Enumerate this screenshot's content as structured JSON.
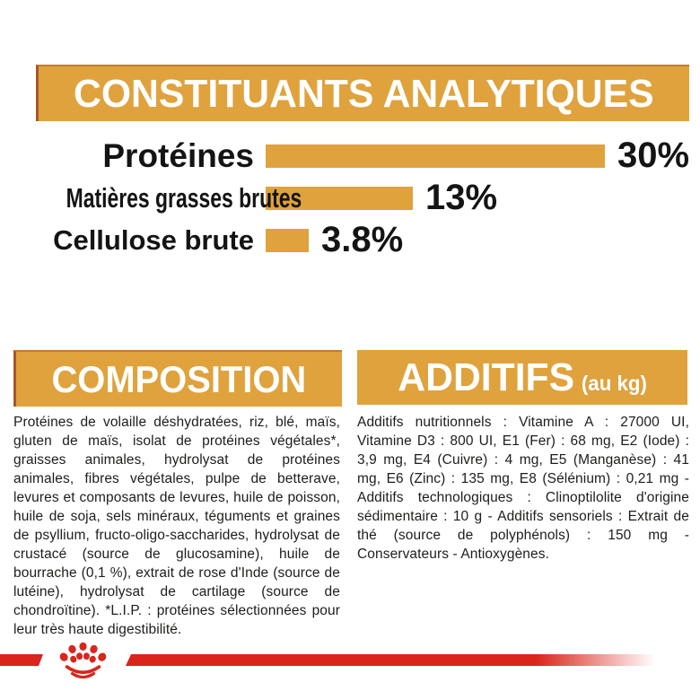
{
  "colors": {
    "gold": "#dfa23c",
    "red": "#d9251c",
    "body_text": "#1d1d1b",
    "banner_text": "#ffffff",
    "banner_edge": "#a9562c"
  },
  "analytical_header": {
    "title": "CONSTITUANTS ANALYTIQUES"
  },
  "chart_data": {
    "type": "bar",
    "orientation": "horizontal",
    "title": "CONSTITUANTS ANALYTIQUES",
    "categories": [
      "Protéines",
      "Matières grasses brutes",
      "Cellulose brute"
    ],
    "values": [
      30,
      13,
      3.8
    ],
    "value_labels": [
      "30%",
      "13%",
      "3.8%"
    ],
    "unit": "%",
    "xlim": [
      0,
      33
    ],
    "bar_color": "#dfa23c",
    "grid": false,
    "legend": false
  },
  "composition": {
    "title": "COMPOSITION",
    "body": "Protéines de volaille déshydratées, riz, blé, maïs, gluten de maïs, isolat de protéines végétales*, graisses animales, hydrolysat de protéines animales, fibres végétales, pulpe de betterave, levures et composants de levures, huile de poisson, huile de soja, sels minéraux, téguments et graines de psyllium, fructo-oligo-saccharides, hydrolysat de crustacé (source de glucosamine), huile de bourrache (0,1 %), extrait de rose d'Inde (source de lutéine), hydrolysat de cartilage (source de chondroïtine). *L.I.P. : protéines sélectionnées pour leur très haute digestibilité."
  },
  "additifs": {
    "title": "ADDITIFS",
    "subtitle": "(au kg)",
    "body": "Additifs nutritionnels : Vitamine A : 27000 UI, Vitamine D3 : 800 UI, E1 (Fer) : 68 mg, E2 (Iode) : 3,9 mg, E4 (Cuivre) : 4 mg, E5 (Manganèse) : 41 mg, E6 (Zinc) : 135 mg, E8 (Sélénium) : 0,21 mg - Additifs technologiques : Clinoptilolite d'origine sédimentaire : 10 g - Additifs sensoriels : Extrait de thé (source de polyphénols) : 150 mg - Conservateurs - Antioxygènes."
  },
  "footer": {
    "brand_logo": "royal-canin-crown"
  }
}
